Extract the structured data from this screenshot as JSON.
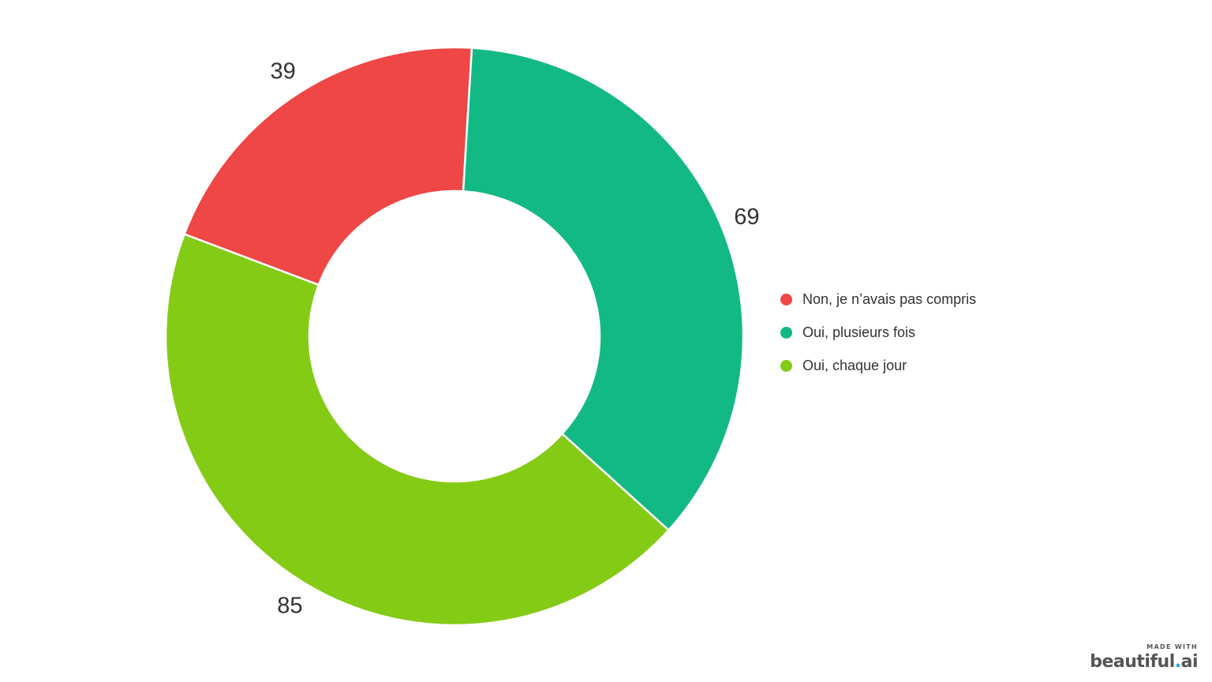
{
  "chart_data": {
    "type": "pie",
    "donut": true,
    "start_angle_deg": 200.7,
    "direction": "clockwise",
    "slices": [
      {
        "label": "Non, je n’avais pas compris",
        "value": 39,
        "color": "#ef4646"
      },
      {
        "label": "Oui, plusieurs fois",
        "value": 69,
        "color": "#13b985"
      },
      {
        "label": "Oui, chaque jour",
        "value": 85,
        "color": "#84cb16"
      }
    ],
    "show_values": true,
    "legend_position": "right"
  },
  "branding": {
    "made_with": "MADE WITH",
    "logo_main": "beautiful",
    "logo_dot": ".",
    "logo_suffix": "ai"
  }
}
